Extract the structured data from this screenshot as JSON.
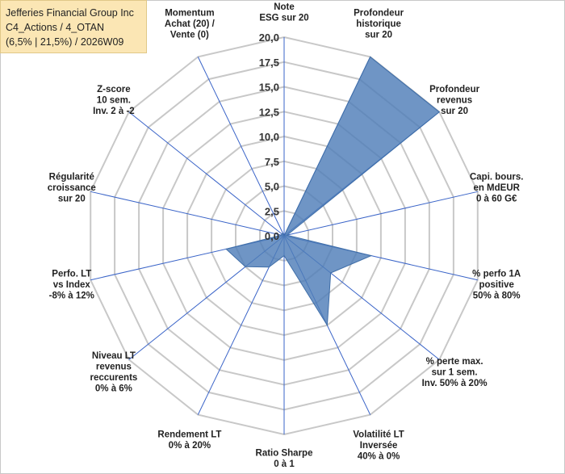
{
  "title_box": {
    "line1": "Jefferies Financial Group Inc",
    "line2": "C4_Actions / 4_OTAN",
    "line3": "(6,5% | 21,5%) / 2026W09"
  },
  "chart_data": {
    "type": "radar",
    "rmin": 0,
    "rmax": 20,
    "tick_step": 2.5,
    "ticks": [
      "0,0",
      "2,5",
      "5,0",
      "7,5",
      "10,0",
      "12,5",
      "15,0",
      "17,5",
      "20,0"
    ],
    "grid": true,
    "series_color": "#4f7eb8",
    "axes": [
      {
        "label": [
          "Note",
          "ESG sur 20"
        ],
        "value": 0
      },
      {
        "label": [
          "Profondeur",
          "historique",
          "sur 20"
        ],
        "value": 20
      },
      {
        "label": [
          "Profondeur",
          "revenus",
          "sur 20"
        ],
        "value": 20
      },
      {
        "label": [
          "Capi. bours.",
          "en MdEUR",
          "0 à 60 G€"
        ],
        "value": 0.3
      },
      {
        "label": [
          "% perfo 1A",
          "positive",
          "50% à 80%"
        ],
        "value": 9
      },
      {
        "label": [
          "% perte max.",
          "sur 1 sem.",
          "Inv. 50% à 20%"
        ],
        "value": 6
      },
      {
        "label": [
          "Volatilité LT",
          "Inversée",
          "40% à 0%"
        ],
        "value": 10
      },
      {
        "label": [
          "Ratio Sharpe",
          "0 à 1"
        ],
        "value": 2
      },
      {
        "label": [
          "Rendement LT",
          "0% à 20%"
        ],
        "value": 3.5
      },
      {
        "label": [
          "Niveau LT",
          "revenus",
          "reccurents",
          "0% à 6%"
        ],
        "value": 5
      },
      {
        "label": [
          "Perfo. LT",
          "vs Index",
          "-8% à 12%"
        ],
        "value": 6
      },
      {
        "label": [
          "Régularité",
          "croissance",
          "sur 20"
        ],
        "value": 0.3
      },
      {
        "label": [
          "Z-score",
          "10 sem.",
          "Inv. 2 à -2"
        ],
        "value": 0.3
      },
      {
        "label": [
          "Momentum",
          "Achat (20) /",
          "Vente (0)"
        ],
        "value": 0.3
      }
    ]
  }
}
